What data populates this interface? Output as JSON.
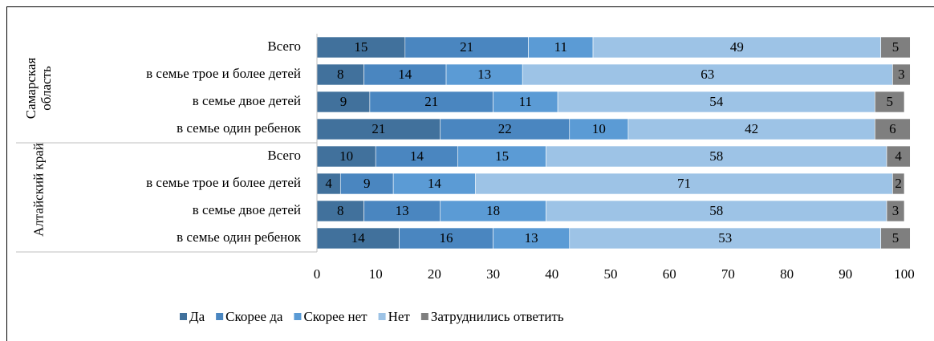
{
  "chart_data": {
    "type": "stacked_barh",
    "category_groups": [
      {
        "name": "Самарская область",
        "categories": [
          "Всего",
          "в семье трое и более детей",
          "в семье двое детей",
          "в семье один ребенок"
        ]
      },
      {
        "name": "Алтайский край",
        "categories": [
          "Всего",
          "в семье трое и более детей",
          "в семье двое детей",
          "в семье один ребенок"
        ]
      }
    ],
    "series": [
      {
        "name": "Да",
        "color": "#41719c",
        "values": [
          15,
          8,
          9,
          21,
          10,
          4,
          8,
          14
        ]
      },
      {
        "name": "Скорее да",
        "color": "#4a86c0",
        "values": [
          21,
          14,
          21,
          22,
          14,
          9,
          13,
          16
        ]
      },
      {
        "name": "Скорее нет",
        "color": "#5b9bd5",
        "values": [
          11,
          13,
          11,
          10,
          15,
          14,
          18,
          13
        ]
      },
      {
        "name": "Нет",
        "color": "#9dc3e6",
        "values": [
          49,
          63,
          54,
          42,
          58,
          71,
          58,
          53
        ]
      },
      {
        "name": "Затруднились ответить",
        "color": "#7f7f7f",
        "values": [
          5,
          3,
          5,
          6,
          4,
          2,
          3,
          5
        ]
      }
    ],
    "xlim": [
      0,
      100
    ],
    "xticks": [
      0,
      10,
      20,
      30,
      40,
      50,
      60,
      70,
      80,
      90,
      100
    ],
    "legend": "bottom"
  }
}
